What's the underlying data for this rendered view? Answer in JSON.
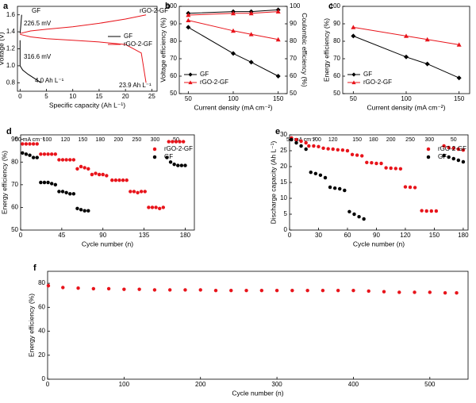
{
  "chart_data": [
    {
      "type": "line",
      "panel": "a",
      "xlabel": "Specific capacity (Ah L⁻¹)",
      "ylabel": "Voltage (V)",
      "xlim": [
        -0.5,
        26
      ],
      "xticks": [
        0,
        5,
        10,
        15,
        20,
        25
      ],
      "ylim": [
        0.7,
        1.7
      ],
      "yticks": [
        0.8,
        {
          "value": 1,
          "label": "1.0"
        },
        1.2,
        1.4,
        1.6
      ],
      "legend": "right",
      "annotations": [
        "GF",
        "rGO-2-GF",
        "226.5 mV",
        "316.6 mV",
        "4.0 Ah L⁻¹",
        "23.9 Ah L⁻¹"
      ],
      "series": [
        {
          "name": "GF",
          "color": "#000000",
          "x": [
            0,
            0.1,
            0.2,
            0.3,
            null,
            0,
            0,
            0.5,
            1.5,
            4
          ],
          "values": [
            1.38,
            1.45,
            1.52,
            1.6,
            null,
            1.3,
            1,
            0.95,
            0.9,
            0.8
          ]
        },
        {
          "name": "rGO-2-GF",
          "color": "#e8141b",
          "x": [
            0,
            2,
            5,
            10,
            15,
            20,
            23.9,
            null,
            0,
            2,
            5,
            10,
            15,
            20,
            23,
            23.9
          ],
          "values": [
            1.38,
            1.41,
            1.43,
            1.46,
            1.5,
            1.55,
            1.6,
            null,
            1.37,
            1.34,
            1.32,
            1.3,
            1.28,
            1.25,
            1.15,
            0.8
          ]
        }
      ]
    },
    {
      "type": "line",
      "panel": "b",
      "xlabel": "Current density (mA cm⁻²)",
      "ylabel": "Voltage efficiency (%)",
      "y2label": "Coulombic efficiency (%)",
      "x": [
        50,
        100,
        120,
        150
      ],
      "xlim": [
        40,
        160
      ],
      "xticks": [
        50,
        100,
        150
      ],
      "ylim": [
        50,
        100
      ],
      "yticks": [
        50,
        60,
        70,
        80,
        90,
        100
      ],
      "y2lim": [
        50,
        100
      ],
      "y2ticks": [
        50,
        60,
        70,
        80,
        90,
        100
      ],
      "legend": "lower left",
      "series": [
        {
          "name": "GF",
          "color": "#000000",
          "marker": "diamond",
          "values": [
            88,
            73,
            68,
            60
          ]
        },
        {
          "name": "rGO-2-GF",
          "color": "#e8141b",
          "marker": "triangle",
          "values": [
            92,
            86,
            84,
            81
          ]
        },
        {
          "name": "GF",
          "color": "#000000",
          "marker": "diamond",
          "axis": "y2",
          "values": [
            96,
            97,
            97,
            98
          ]
        },
        {
          "name": "rGO-2-GF",
          "color": "#e8141b",
          "marker": "triangle",
          "axis": "y2",
          "values": [
            95,
            96,
            96,
            97
          ]
        }
      ]
    },
    {
      "type": "line",
      "panel": "c",
      "xlabel": "Current density (mA cm⁻²)",
      "ylabel": "Energy efficiency (%)",
      "x": [
        50,
        100,
        120,
        150
      ],
      "xlim": [
        40,
        160
      ],
      "xticks": [
        50,
        100,
        150
      ],
      "ylim": [
        50,
        100
      ],
      "yticks": [
        50,
        60,
        70,
        80,
        90,
        100
      ],
      "legend": "lower left",
      "series": [
        {
          "name": "GF",
          "color": "#000000",
          "marker": "diamond",
          "values": [
            83,
            71,
            67,
            59
          ]
        },
        {
          "name": "rGO-2-GF",
          "color": "#e8141b",
          "marker": "triangle",
          "values": [
            88,
            83,
            81,
            78
          ]
        }
      ]
    },
    {
      "type": "scatter",
      "panel": "d",
      "xlabel": "Cycle number (n)",
      "ylabel": "Energy efficiency (%)",
      "xlim": [
        0,
        190
      ],
      "xticks": [
        0,
        45,
        90,
        135,
        180
      ],
      "ylim": [
        50,
        92
      ],
      "yticks": [
        50,
        60,
        70,
        80,
        90
      ],
      "legend": "upper right",
      "rate_labels": [
        "50 mA cm⁻²",
        "100",
        "120",
        "150",
        "180",
        "200",
        "250",
        "300",
        "50"
      ],
      "series": [
        {
          "name": "rGO-2-GF",
          "color": "#e8141b",
          "marker": "circle",
          "x": [
            2,
            6,
            10,
            14,
            18,
            22,
            26,
            30,
            34,
            38,
            42,
            46,
            50,
            54,
            58,
            62,
            66,
            70,
            74,
            78,
            82,
            86,
            90,
            94,
            100,
            104,
            108,
            112,
            116,
            120,
            124,
            128,
            132,
            136,
            140,
            144,
            148,
            152,
            156,
            162,
            166,
            170,
            174,
            178
          ],
          "values": [
            88,
            88,
            88,
            88,
            88,
            83.5,
            83.5,
            83.5,
            83.5,
            83.5,
            81,
            81,
            81,
            81,
            81,
            77,
            78,
            77.5,
            77,
            74.5,
            75,
            74.5,
            74.5,
            74,
            72,
            72,
            72,
            72,
            72,
            67,
            67,
            66.5,
            67,
            67,
            60,
            60,
            60,
            59.5,
            60,
            89,
            89,
            89,
            89,
            89
          ]
        },
        {
          "name": "GF",
          "color": "#000000",
          "marker": "circle",
          "x": [
            2,
            6,
            10,
            14,
            18,
            22,
            26,
            30,
            34,
            38,
            42,
            46,
            50,
            54,
            58,
            62,
            66,
            70,
            74,
            160,
            164,
            168,
            172,
            176,
            180
          ],
          "values": [
            84,
            83.5,
            83,
            82,
            82,
            71,
            71,
            71,
            70.5,
            70,
            67,
            67,
            66.5,
            66,
            66,
            59.5,
            59,
            58.5,
            58.5,
            82,
            80,
            79,
            78.5,
            78.5,
            78.5
          ]
        }
      ]
    },
    {
      "type": "scatter",
      "panel": "e",
      "xlabel": "Cycle number (n)",
      "ylabel": "Discharge capacity (Ah L⁻¹)",
      "xlim": [
        0,
        185
      ],
      "xticks": [
        0,
        30,
        60,
        90,
        120,
        150,
        180
      ],
      "ylim": [
        0,
        30
      ],
      "yticks": [
        0,
        5,
        10,
        15,
        20,
        25,
        30
      ],
      "legend": "upper right",
      "rate_labels": [
        "50 mA cm⁻²",
        "100",
        "120",
        "150",
        "180",
        "200",
        "250",
        "300",
        "50"
      ],
      "series": [
        {
          "name": "rGO-2-GF",
          "color": "#e8141b",
          "marker": "circle",
          "x": [
            2,
            7,
            12,
            17,
            20,
            25,
            30,
            35,
            40,
            45,
            50,
            55,
            60,
            65,
            70,
            75,
            80,
            85,
            90,
            95,
            100,
            105,
            110,
            115,
            120,
            125,
            130,
            137,
            142,
            147,
            152,
            160,
            165,
            170,
            175,
            180
          ],
          "values": [
            29,
            28.5,
            28,
            27.5,
            26.5,
            26.5,
            26.3,
            25.8,
            25.6,
            25.5,
            25.3,
            25.2,
            25,
            23.8,
            23.6,
            23.4,
            21.3,
            21.2,
            21,
            21,
            19.6,
            19.5,
            19.4,
            19.3,
            13.6,
            13.5,
            13.4,
            6.1,
            6,
            6,
            6,
            26.5,
            26,
            25.8,
            25.5,
            25.2
          ]
        },
        {
          "name": "GF",
          "color": "#000000",
          "marker": "circle",
          "x": [
            2,
            7,
            12,
            17,
            22,
            27,
            32,
            37,
            42,
            47,
            52,
            57,
            62,
            67,
            72,
            77,
            160,
            165,
            170,
            175,
            180
          ],
          "values": [
            28.5,
            27.5,
            26.5,
            25.5,
            18.2,
            17.8,
            17.3,
            16.5,
            13.5,
            13.2,
            13,
            12.5,
            5.8,
            5,
            4.2,
            3.5,
            23.5,
            23,
            22.5,
            22,
            21.5
          ]
        }
      ]
    },
    {
      "type": "scatter",
      "panel": "f",
      "xlabel": "Cycle number (n)",
      "ylabel": "Energy efficiency (%)",
      "xlim": [
        0,
        550
      ],
      "xticks": [
        0,
        100,
        200,
        300,
        400,
        500
      ],
      "ylim": [
        0,
        90
      ],
      "yticks": [
        0,
        20,
        40,
        60,
        80
      ],
      "series": [
        {
          "color": "#e8141b",
          "marker": "circle",
          "x": [
            1,
            20,
            40,
            60,
            80,
            100,
            120,
            140,
            160,
            180,
            200,
            220,
            240,
            260,
            280,
            300,
            320,
            340,
            360,
            380,
            400,
            420,
            440,
            460,
            480,
            500,
            520,
            535
          ],
          "values": [
            78,
            76.5,
            76,
            75.5,
            75.5,
            75,
            75,
            74.5,
            74.5,
            74.5,
            74.5,
            74,
            74,
            74,
            74,
            74,
            74,
            74,
            74,
            74,
            74,
            73.5,
            73,
            72.5,
            72.5,
            72.5,
            72,
            72
          ]
        }
      ]
    }
  ]
}
